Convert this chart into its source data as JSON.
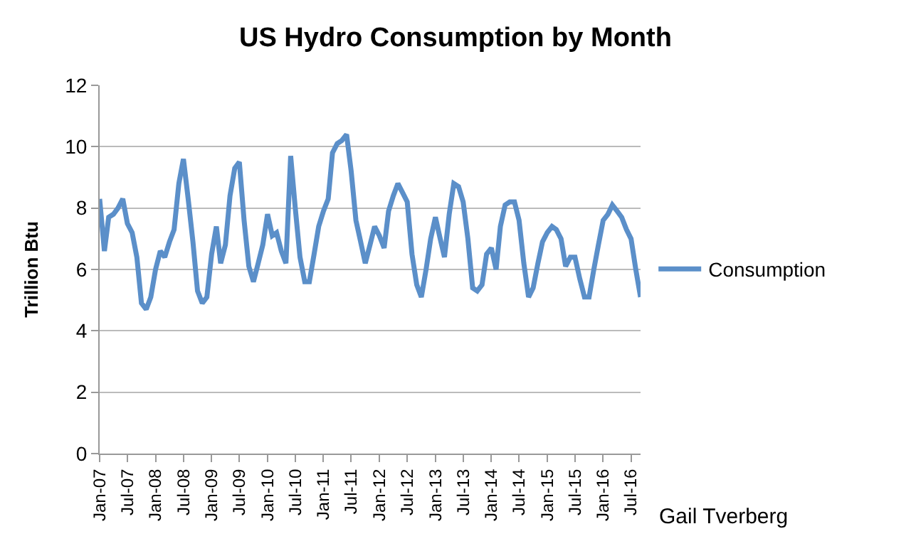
{
  "chart_data": {
    "type": "line",
    "title": "US Hydro Consumption by Month",
    "ylabel": "Trillion Btu",
    "x": [
      "2007-01",
      "2007-02",
      "2007-03",
      "2007-04",
      "2007-05",
      "2007-06",
      "2007-07",
      "2007-08",
      "2007-09",
      "2007-10",
      "2007-11",
      "2007-12",
      "2008-01",
      "2008-02",
      "2008-03",
      "2008-04",
      "2008-05",
      "2008-06",
      "2008-07",
      "2008-08",
      "2008-09",
      "2008-10",
      "2008-11",
      "2008-12",
      "2009-01",
      "2009-02",
      "2009-03",
      "2009-04",
      "2009-05",
      "2009-06",
      "2009-07",
      "2009-08",
      "2009-09",
      "2009-10",
      "2009-11",
      "2009-12",
      "2010-01",
      "2010-02",
      "2010-03",
      "2010-04",
      "2010-05",
      "2010-06",
      "2010-07",
      "2010-08",
      "2010-09",
      "2010-10",
      "2010-11",
      "2010-12",
      "2011-01",
      "2011-02",
      "2011-03",
      "2011-04",
      "2011-05",
      "2011-06",
      "2011-07",
      "2011-08",
      "2011-09",
      "2011-10",
      "2011-11",
      "2011-12",
      "2012-01",
      "2012-02",
      "2012-03",
      "2012-04",
      "2012-05",
      "2012-06",
      "2012-07",
      "2012-08",
      "2012-09",
      "2012-10",
      "2012-11",
      "2012-12",
      "2013-01",
      "2013-02",
      "2013-03",
      "2013-04",
      "2013-05",
      "2013-06",
      "2013-07",
      "2013-08",
      "2013-09",
      "2013-10",
      "2013-11",
      "2013-12",
      "2014-01",
      "2014-02",
      "2014-03",
      "2014-04",
      "2014-05",
      "2014-06",
      "2014-07",
      "2014-08",
      "2014-09",
      "2014-10",
      "2014-11",
      "2014-12",
      "2015-01",
      "2015-02",
      "2015-03",
      "2015-04",
      "2015-05",
      "2015-06",
      "2015-07",
      "2015-08",
      "2015-09",
      "2015-10",
      "2015-11",
      "2015-12",
      "2016-01",
      "2016-02",
      "2016-03",
      "2016-04",
      "2016-05",
      "2016-06",
      "2016-07",
      "2016-08",
      "2016-09"
    ],
    "series": [
      {
        "name": "Consumption",
        "color": "#5b8fc9",
        "values": [
          8.3,
          6.6,
          7.7,
          7.8,
          8.0,
          8.3,
          7.5,
          7.2,
          6.4,
          4.9,
          4.7,
          5.1,
          6.0,
          6.6,
          6.4,
          6.9,
          7.3,
          8.8,
          9.6,
          8.3,
          6.9,
          5.3,
          4.9,
          5.1,
          6.5,
          7.4,
          6.2,
          6.8,
          8.4,
          9.3,
          9.5,
          7.6,
          6.1,
          5.6,
          6.2,
          6.8,
          7.8,
          7.1,
          7.2,
          6.6,
          6.2,
          9.7,
          8.0,
          6.4,
          5.6,
          5.6,
          6.5,
          7.4,
          7.9,
          8.3,
          9.8,
          10.1,
          10.2,
          10.4,
          9.2,
          7.6,
          6.9,
          6.2,
          6.8,
          7.4,
          7.1,
          6.7,
          7.9,
          8.4,
          8.8,
          8.5,
          8.2,
          6.5,
          5.5,
          5.1,
          6.0,
          7.0,
          7.7,
          7.0,
          6.4,
          7.8,
          8.8,
          8.7,
          8.2,
          7.0,
          5.4,
          5.3,
          5.5,
          6.5,
          6.7,
          6.0,
          7.4,
          8.1,
          8.2,
          8.2,
          7.6,
          6.2,
          5.1,
          5.4,
          6.2,
          6.9,
          7.2,
          7.4,
          7.3,
          7.0,
          6.1,
          6.4,
          6.4,
          5.7,
          5.1,
          5.1,
          6.0,
          6.8,
          7.6,
          7.8,
          8.1,
          7.9,
          7.7,
          7.3,
          7.0,
          6.0,
          5.1
        ]
      }
    ],
    "xlim": [
      "2007-01",
      "2016-09"
    ],
    "xticks": [
      {
        "value": "2007-01",
        "label": "Jan-07"
      },
      {
        "value": "2007-07",
        "label": "Jul-07"
      },
      {
        "value": "2008-01",
        "label": "Jan-08"
      },
      {
        "value": "2008-07",
        "label": "Jul-08"
      },
      {
        "value": "2009-01",
        "label": "Jan-09"
      },
      {
        "value": "2009-07",
        "label": "Jul-09"
      },
      {
        "value": "2010-01",
        "label": "Jan-10"
      },
      {
        "value": "2010-07",
        "label": "Jul-10"
      },
      {
        "value": "2011-01",
        "label": "Jan-11"
      },
      {
        "value": "2011-07",
        "label": "Jul-11"
      },
      {
        "value": "2012-01",
        "label": "Jan-12"
      },
      {
        "value": "2012-07",
        "label": "Jul-12"
      },
      {
        "value": "2013-01",
        "label": "Jan-13"
      },
      {
        "value": "2013-07",
        "label": "Jul-13"
      },
      {
        "value": "2014-01",
        "label": "Jan-14"
      },
      {
        "value": "2014-07",
        "label": "Jul-14"
      },
      {
        "value": "2015-01",
        "label": "Jan-15"
      },
      {
        "value": "2015-07",
        "label": "Jul-15"
      },
      {
        "value": "2016-01",
        "label": "Jan-16"
      },
      {
        "value": "2016-07",
        "label": "Jul-16"
      }
    ],
    "ylim": [
      0,
      12
    ],
    "yticks": [
      0,
      2,
      4,
      6,
      8,
      10,
      12
    ],
    "grid": "y",
    "legend": "right",
    "marker": "none",
    "line_style": "solid",
    "annotations": [
      "Gail Tverberg"
    ]
  }
}
